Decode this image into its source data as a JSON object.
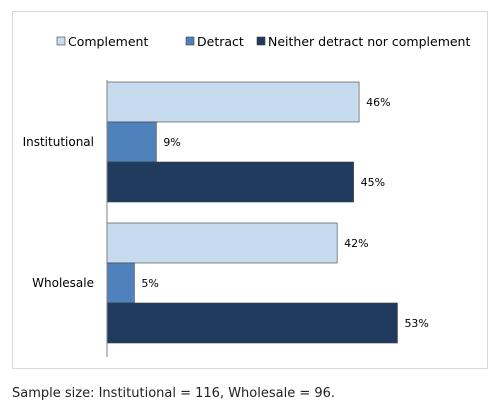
{
  "chart_data": {
    "type": "bar",
    "orientation": "horizontal",
    "categories": [
      "Institutional",
      "Wholesale"
    ],
    "series": [
      {
        "name": "Complement",
        "values": [
          46,
          42
        ],
        "value_labels": [
          "46%",
          "42%"
        ],
        "color": "#c6dcee"
      },
      {
        "name": "Detract",
        "values": [
          9,
          5
        ],
        "value_labels": [
          "9%",
          "5%"
        ],
        "color": "#4f81bd"
      },
      {
        "name": "Neither detract nor complement",
        "values": [
          45,
          53
        ],
        "value_labels": [
          "45%",
          "53%"
        ],
        "color": "#1f3b5e"
      }
    ],
    "unit": "%",
    "xlim": [
      0,
      65
    ],
    "legend_position": "top",
    "grid": false,
    "title": "",
    "xlabel": "",
    "ylabel": ""
  },
  "footnote": "Sample size: Institutional = 116, Wholesale = 96."
}
